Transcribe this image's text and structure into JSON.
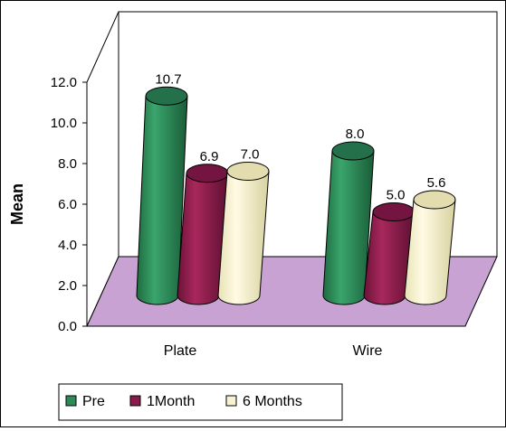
{
  "chart_data": {
    "type": "bar",
    "style": "3d-cylinder",
    "ylabel": "Mean",
    "ylim": [
      0,
      12
    ],
    "yticks": [
      "0.0",
      "2.0",
      "4.0",
      "6.0",
      "8.0",
      "10.0",
      "12.0"
    ],
    "categories": [
      "Plate",
      "Wire"
    ],
    "series": [
      {
        "name": "Pre",
        "color": "#2e8b57",
        "values": [
          10.7,
          8.0
        ],
        "labels": [
          "10.7",
          "8.0"
        ]
      },
      {
        "name": "1Month",
        "color": "#8b1a4a",
        "values": [
          6.9,
          5.0
        ],
        "labels": [
          "6.9",
          "5.0"
        ]
      },
      {
        "name": "6 Months",
        "color": "#f7f3d0",
        "values": [
          7.0,
          5.6
        ],
        "labels": [
          "7.0",
          "5.6"
        ]
      }
    ],
    "floor_color": "#c8a2d2",
    "legend_position": "bottom"
  }
}
